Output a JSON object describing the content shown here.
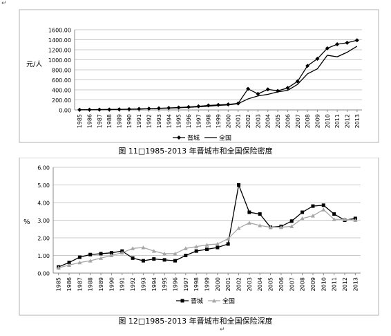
{
  "captions": {
    "fig11": "图 11□1985-2013 年晋城市和全国保险密度",
    "fig12": "图 12□1985-2013 年晋城市和全国保险深度"
  },
  "chart_data": [
    {
      "type": "line",
      "ylabel": "元/人",
      "ylim": [
        0,
        1600
      ],
      "yticks": [
        "0.00",
        "200.00",
        "400.00",
        "600.00",
        "800.00",
        "1000.00",
        "1200.00",
        "1400.00",
        "1600.00"
      ],
      "grid": true,
      "legend_position": "bottom",
      "categories": [
        "1985",
        "1986",
        "1987",
        "1988",
        "1989",
        "1990",
        "1991",
        "1992",
        "1993",
        "1994",
        "1995",
        "1996",
        "1997",
        "1998",
        "1999",
        "2000",
        "2001",
        "2002",
        "2003",
        "2004",
        "2005",
        "2006",
        "2007",
        "2008",
        "2009",
        "2010",
        "2011",
        "2012",
        "2013"
      ],
      "series": [
        {
          "name": "晋城",
          "color": "#000000",
          "marker": "diamond",
          "values": [
            3,
            5,
            7,
            9,
            12,
            15,
            20,
            26,
            33,
            40,
            48,
            58,
            72,
            90,
            100,
            110,
            130,
            420,
            320,
            410,
            380,
            440,
            570,
            880,
            1020,
            1230,
            1310,
            1340,
            1390
          ]
        },
        {
          "name": "全国",
          "color": "#000000",
          "marker": "none",
          "values": [
            2,
            4,
            6,
            8,
            10,
            14,
            18,
            24,
            30,
            37,
            44,
            52,
            62,
            75,
            90,
            100,
            125,
            220,
            280,
            310,
            360,
            390,
            510,
            720,
            820,
            1090,
            1060,
            1150,
            1270
          ]
        }
      ]
    },
    {
      "type": "line",
      "ylabel": "%",
      "ylim": [
        0,
        6
      ],
      "yticks": [
        "0.00",
        "1.00",
        "2.00",
        "3.00",
        "4.00",
        "5.00",
        "6.00"
      ],
      "grid": true,
      "legend_position": "bottom",
      "categories": [
        "1985",
        "1986",
        "1987",
        "1988",
        "1989",
        "1990",
        "1991",
        "1992",
        "1993",
        "1994",
        "1995",
        "1996",
        "1997",
        "1998",
        "1999",
        "2000",
        "2001",
        "2002",
        "2003",
        "2004",
        "2005",
        "2006",
        "2007",
        "2008",
        "2009",
        "2010",
        "2011",
        "2012",
        "2013"
      ],
      "series": [
        {
          "name": "晋城",
          "color": "#000000",
          "marker": "square",
          "values": [
            0.35,
            0.6,
            0.9,
            1.05,
            1.1,
            1.15,
            1.25,
            0.85,
            0.7,
            0.8,
            0.75,
            0.7,
            1.0,
            1.25,
            1.35,
            1.45,
            1.65,
            5.0,
            3.45,
            3.35,
            2.6,
            2.65,
            2.95,
            3.45,
            3.8,
            3.85,
            3.35,
            3.0,
            3.1
          ]
        },
        {
          "name": "全国",
          "color": "#a6a6a6",
          "marker": "triangle",
          "values": [
            0.3,
            0.45,
            0.6,
            0.7,
            0.85,
            1.0,
            1.15,
            1.4,
            1.45,
            1.25,
            1.1,
            1.1,
            1.4,
            1.5,
            1.6,
            1.65,
            1.95,
            2.55,
            2.85,
            2.7,
            2.6,
            2.6,
            2.65,
            3.1,
            3.25,
            3.6,
            3.05,
            3.05,
            3.0
          ]
        }
      ]
    }
  ]
}
